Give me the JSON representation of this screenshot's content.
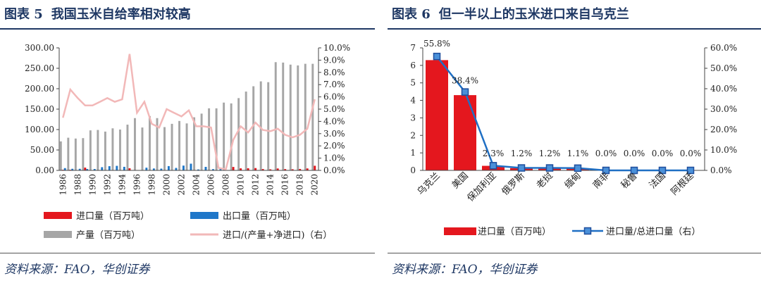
{
  "fig5": {
    "label": "图表 5",
    "title": "我国玉米自给率相对较高",
    "source": "资料来源：FAO，华创证券",
    "chart_data": {
      "type": "bar",
      "years": [
        1986,
        1987,
        1988,
        1989,
        1990,
        1991,
        1992,
        1993,
        1994,
        1995,
        1996,
        1997,
        1998,
        1999,
        2000,
        2001,
        2002,
        2003,
        2004,
        2005,
        2006,
        2007,
        2008,
        2009,
        2010,
        2011,
        2012,
        2013,
        2014,
        2015,
        2016,
        2017,
        2018,
        2019,
        2020
      ],
      "x_tick_labels": [
        "1986",
        "1988",
        "1990",
        "1992",
        "1994",
        "1996",
        "1998",
        "2000",
        "2002",
        "2004",
        "2006",
        "2008",
        "2010",
        "2012",
        "2014",
        "2016",
        "2018",
        "2020"
      ],
      "series": [
        {
          "name": "进口量（百万吨）",
          "kind": "bar",
          "axis": "left",
          "color": "#e4171e",
          "values": [
            1.5,
            1.5,
            0.1,
            6.8,
            0.4,
            0.1,
            0.1,
            0.1,
            0.1,
            5.2,
            0.4,
            0.1,
            0.3,
            0.1,
            0.1,
            0.1,
            0.1,
            0.1,
            0.1,
            0.1,
            0.1,
            0.1,
            0.1,
            8.4,
            5.0,
            5.2,
            5.7,
            3.3,
            2.6,
            4.7,
            3.2,
            2.8,
            3.5,
            4.8,
            11.3
          ]
        },
        {
          "name": "出口量（百万吨）",
          "kind": "bar",
          "axis": "left",
          "color": "#1f77c9",
          "values": [
            5.6,
            3.9,
            3.9,
            3.5,
            3.4,
            7.8,
            10.3,
            11.1,
            8.7,
            0.1,
            0.2,
            6.6,
            4.7,
            4.3,
            10.5,
            6.0,
            11.7,
            16.4,
            2.3,
            8.6,
            3.1,
            4.9,
            0.3,
            0.1,
            0.1,
            0.1,
            0.3,
            0.1,
            0.1,
            0.1,
            0.1,
            0.1,
            0.2,
            0.1,
            0.1
          ]
        },
        {
          "name": "产量（百万吨）",
          "kind": "bar",
          "axis": "left",
          "color": "#a6a6a6",
          "values": [
            71,
            80,
            78,
            79,
            98,
            99,
            95,
            103,
            100,
            112,
            128,
            105,
            133,
            128,
            106,
            114,
            121,
            115,
            130,
            139,
            152,
            152,
            166,
            164,
            177,
            193,
            206,
            218,
            216,
            265,
            264,
            259,
            257,
            261,
            261
          ]
        },
        {
          "name": "进口/(产量+净进口)（右）",
          "kind": "line",
          "axis": "right",
          "color": "#f2b8b8",
          "values": [
            4.3,
            6.6,
            5.9,
            5.3,
            5.3,
            5.6,
            5.9,
            5.6,
            5.8,
            9.5,
            4.7,
            5.6,
            3.8,
            3.5,
            5.0,
            4.7,
            4.4,
            4.9,
            3.6,
            3.6,
            3.5,
            0.2,
            0.1,
            2.5,
            3.6,
            3.1,
            3.9,
            3.3,
            3.2,
            3.4,
            2.9,
            2.7,
            2.9,
            3.4,
            5.8
          ]
        }
      ],
      "y_left": {
        "min": 0,
        "max": 300,
        "ticks": [
          "0.00",
          "50.00",
          "100.00",
          "150.00",
          "200.00",
          "250.00",
          "300.00"
        ]
      },
      "y_right": {
        "min": 0,
        "max": 10,
        "ticks": [
          "0.0%",
          "1.0%",
          "2.0%",
          "3.0%",
          "4.0%",
          "5.0%",
          "6.0%",
          "7.0%",
          "8.0%",
          "9.0%",
          "10.0%"
        ]
      },
      "legend": [
        "进口量（百万吨）",
        "出口量（百万吨）",
        "产量（百万吨）",
        "进口/(产量+净进口)（右）"
      ]
    }
  },
  "fig6": {
    "label": "图表 6",
    "title": "但一半以上的玉米进口来自乌克兰",
    "source": "资料来源：FAO，华创证券",
    "chart_data": {
      "type": "bar",
      "categories": [
        "乌克兰",
        "美国",
        "保加利亚",
        "俄罗斯",
        "老挝",
        "缅甸",
        "南非",
        "秘鲁",
        "法国",
        "阿根廷"
      ],
      "series": [
        {
          "name": "进口量（百万吨）",
          "kind": "bar",
          "axis": "left",
          "color": "#e4171e",
          "values": [
            6.3,
            4.3,
            0.26,
            0.13,
            0.13,
            0.12,
            0.0,
            0.0,
            0.0,
            0.0
          ]
        },
        {
          "name": "进口量/总进口量（右）",
          "kind": "line",
          "axis": "right",
          "color": "#1f6fc4",
          "values": [
            55.8,
            38.4,
            2.3,
            1.2,
            1.2,
            1.1,
            0.0,
            0.0,
            0.0,
            0.0
          ]
        }
      ],
      "data_labels": [
        "55.8%",
        "38.4%",
        "2.3%",
        "1.2%",
        "1.2%",
        "1.1%",
        "0.0%",
        "0.0%",
        "0.0%",
        "0.0%"
      ],
      "y_left": {
        "min": 0,
        "max": 7,
        "ticks": [
          "0",
          "1",
          "2",
          "3",
          "4",
          "5",
          "6",
          "7"
        ]
      },
      "y_right": {
        "min": 0,
        "max": 60,
        "ticks": [
          "0.0%",
          "10.0%",
          "20.0%",
          "30.0%",
          "40.0%",
          "50.0%",
          "60.0%"
        ]
      },
      "legend": [
        "进口量（百万吨）",
        "进口量/总进口量（右）"
      ]
    }
  }
}
